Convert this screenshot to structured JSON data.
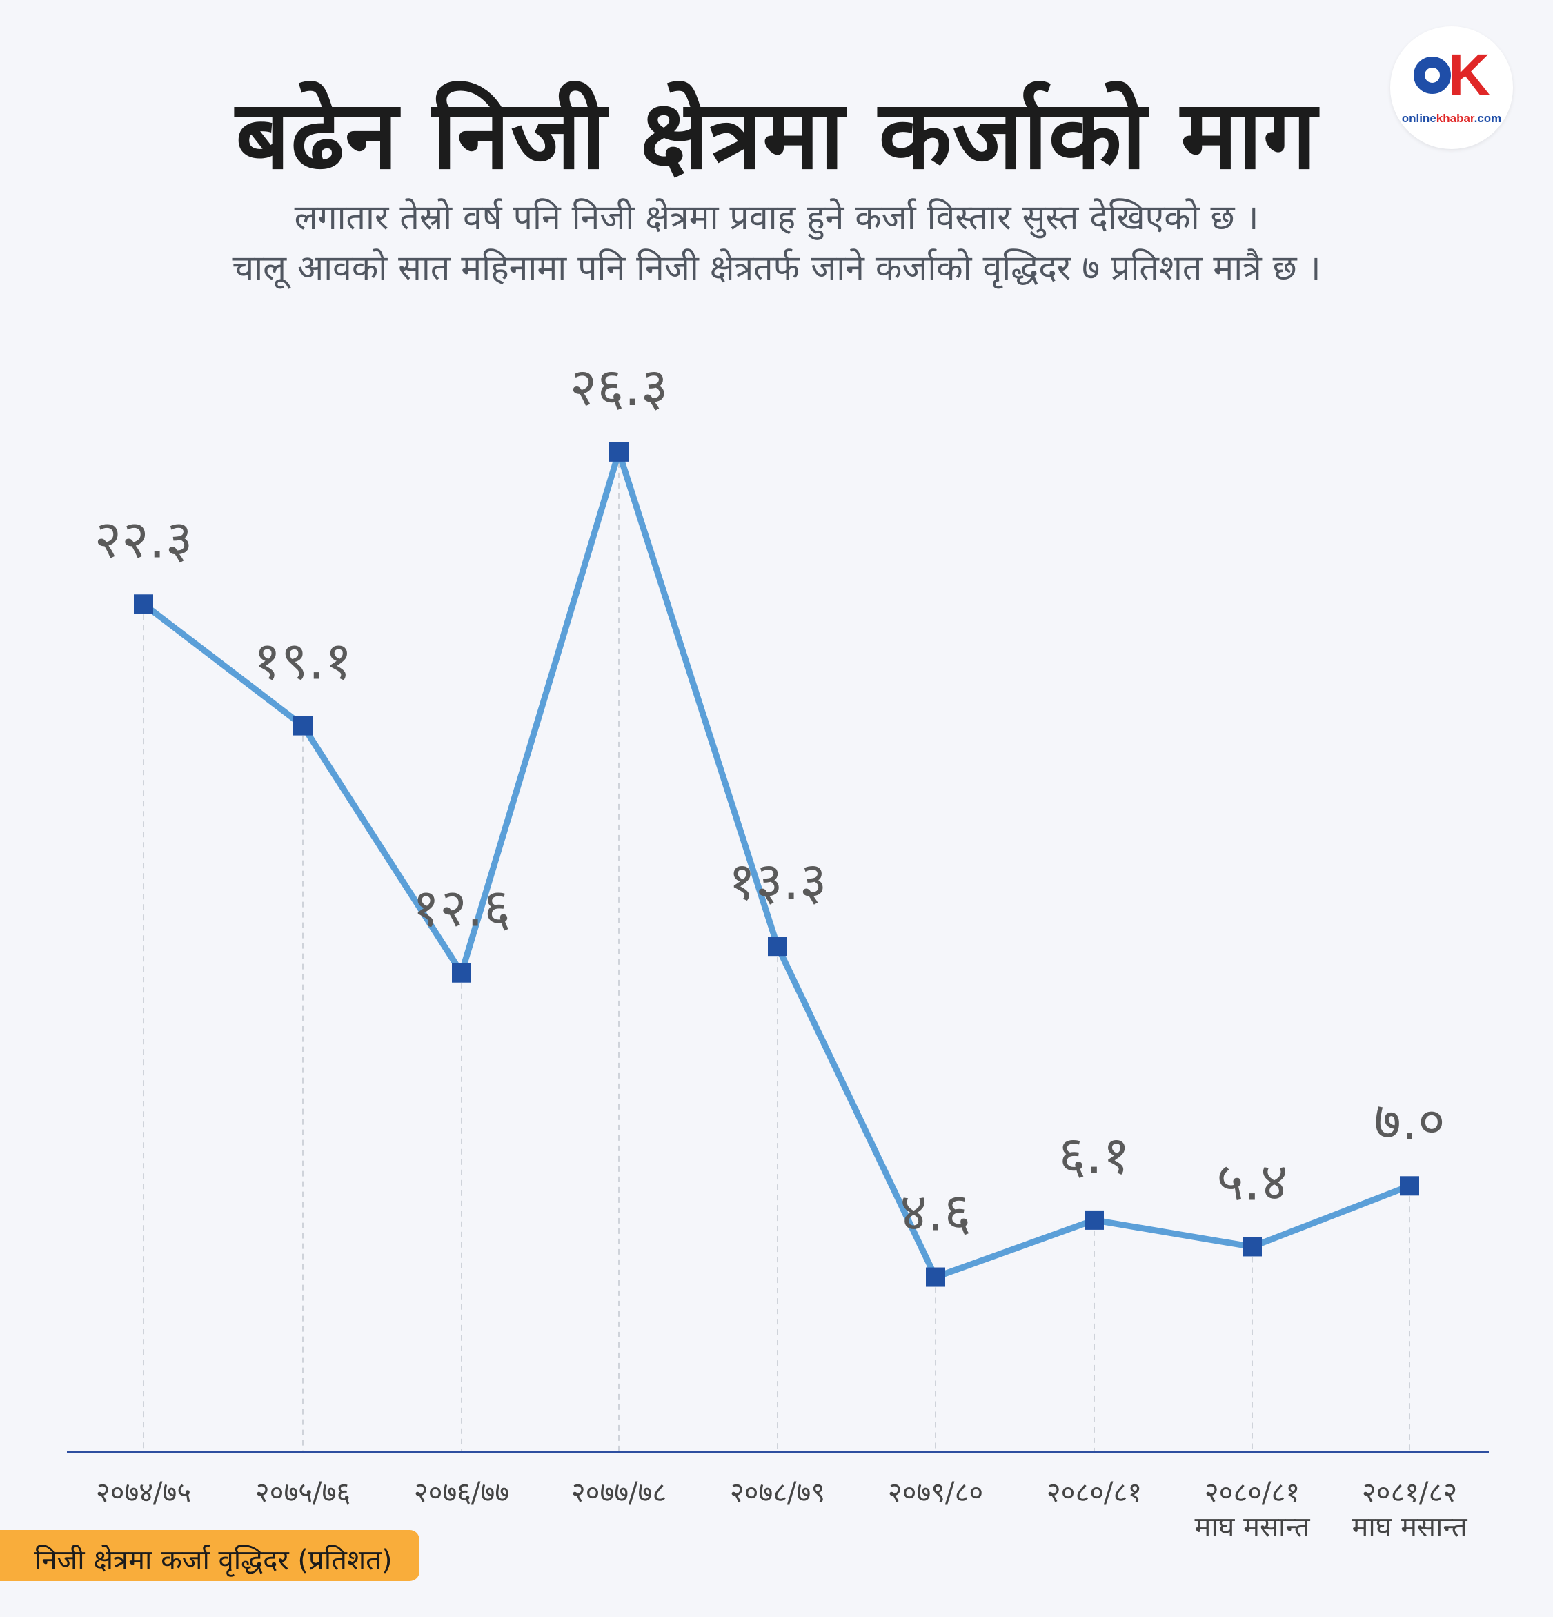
{
  "title": "बढेन निजी क्षेत्रमा कर्जाको माग",
  "subtitle": [
    "लगातार तेस्रो वर्ष पनि निजी क्षेत्रमा प्रवाह हुने कर्जा विस्तार सुस्त देखिएको छ ।",
    "चालू आवको सात महिनामा पनि निजी क्षेत्रतर्फ जाने कर्जाको वृद्धिदर ७ प्रतिशत मात्रै छ ।"
  ],
  "logo": {
    "brand": "online",
    "brand_accent": "khabar",
    "suffix": ".com"
  },
  "legend": {
    "label": "निजी क्षेत्रमा कर्जा वृद्धिदर  (प्रतिशत)"
  },
  "colors": {
    "line": "#5b9fd8",
    "marker": "#2151a3",
    "axis": "#2e4fa0",
    "legend_bg": "#f9ad3b"
  },
  "chart_data": {
    "type": "line",
    "categories": [
      [
        "२०७४/७५"
      ],
      [
        "२०७५/७६"
      ],
      [
        "२०७६/७७"
      ],
      [
        "२०७७/७८"
      ],
      [
        "२०७८/७९"
      ],
      [
        "२०७९/८०"
      ],
      [
        "२०८०/८१"
      ],
      [
        "२०८०/८१",
        "माघ मसान्त"
      ],
      [
        "२०८१/८२",
        "माघ मसान्त"
      ]
    ],
    "series": [
      {
        "values": [
          22.3,
          19.1,
          12.6,
          26.3,
          13.3,
          4.6,
          6.1,
          5.4,
          7.0
        ],
        "labels": [
          "२२.३",
          "१९.१",
          "१२.६",
          "२६.३",
          "१३.३",
          "४.६",
          "६.१",
          "५.४",
          "७.०"
        ]
      }
    ],
    "ylim": [
      0,
      30
    ],
    "grid": "vertical-dashed"
  }
}
